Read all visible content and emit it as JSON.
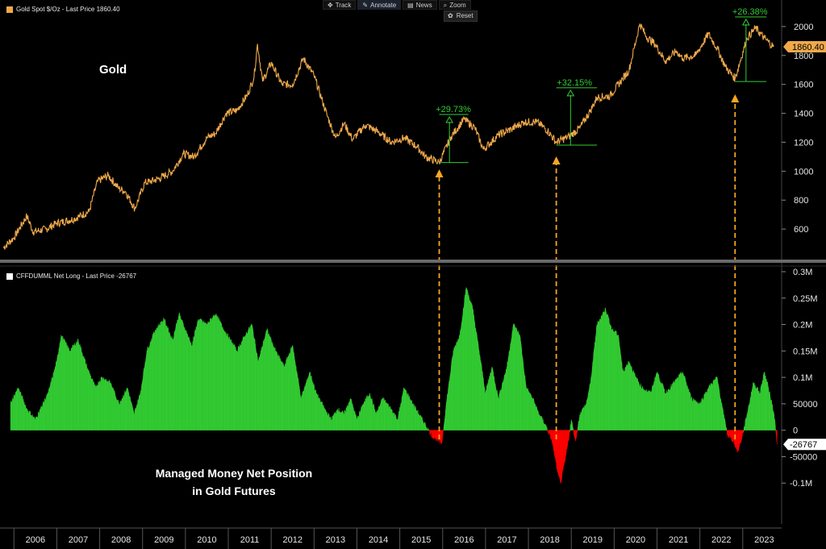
{
  "toolbar": {
    "items": [
      {
        "label": "Track",
        "icon": "crosshair-icon"
      },
      {
        "label": "Annotate",
        "icon": "pencil-icon"
      },
      {
        "label": "News",
        "icon": "news-icon"
      },
      {
        "label": "Zoom",
        "icon": "magnifier-icon"
      }
    ],
    "reset_label": "Reset"
  },
  "headings": {
    "gold": "Gold",
    "net_line1": "Managed Money Net Position",
    "net_line2": "in Gold Futures"
  },
  "colors": {
    "gold_line": "#f0a94a",
    "net_positive": "#33cc33",
    "net_negative": "#ff0000",
    "annotation": "#33cc33",
    "arrow": "#f5a623",
    "axis_text": "#e6e6e6",
    "badge_bg": "#f0a94a"
  },
  "chart_data": [
    {
      "type": "line",
      "legend": "Gold Spot $/Oz - Last Price 1860.40",
      "last_value_label": "1860.40",
      "ylim": [
        400,
        2150
      ],
      "yticks": [
        "600",
        "800",
        "1000",
        "1200",
        "1400",
        "1600",
        "1800",
        "2000"
      ],
      "x": [
        2005.75,
        2006.0,
        2006.3,
        2006.45,
        2006.75,
        2007.0,
        2007.4,
        2007.75,
        2007.95,
        2008.2,
        2008.45,
        2008.6,
        2008.82,
        2009.05,
        2009.2,
        2009.4,
        2009.7,
        2009.95,
        2010.2,
        2010.5,
        2010.7,
        2010.95,
        2011.2,
        2011.45,
        2011.6,
        2011.68,
        2011.8,
        2012.0,
        2012.25,
        2012.5,
        2012.75,
        2013.0,
        2013.3,
        2013.5,
        2013.7,
        2013.9,
        2014.2,
        2014.5,
        2014.8,
        2015.1,
        2015.4,
        2015.6,
        2015.92,
        2016.2,
        2016.5,
        2016.75,
        2016.95,
        2017.3,
        2017.6,
        2017.9,
        2018.2,
        2018.45,
        2018.65,
        2018.95,
        2019.2,
        2019.45,
        2019.6,
        2019.9,
        2020.2,
        2020.35,
        2020.6,
        2020.75,
        2020.95,
        2021.2,
        2021.45,
        2021.6,
        2021.9,
        2022.2,
        2022.4,
        2022.6,
        2022.82,
        2023.1,
        2023.3,
        2023.5,
        2023.72
      ],
      "y": [
        470,
        540,
        690,
        580,
        600,
        640,
        670,
        720,
        930,
        970,
        880,
        860,
        740,
        920,
        930,
        950,
        1000,
        1120,
        1100,
        1230,
        1260,
        1400,
        1420,
        1530,
        1650,
        1880,
        1620,
        1750,
        1600,
        1600,
        1780,
        1660,
        1390,
        1230,
        1330,
        1220,
        1320,
        1270,
        1200,
        1230,
        1170,
        1100,
        1060,
        1240,
        1360,
        1300,
        1150,
        1250,
        1290,
        1340,
        1340,
        1280,
        1200,
        1240,
        1300,
        1420,
        1510,
        1520,
        1640,
        1700,
        2020,
        1930,
        1880,
        1760,
        1830,
        1780,
        1800,
        1950,
        1850,
        1720,
        1640,
        1920,
        1990,
        1920,
        1860
      ],
      "annotations": [
        {
          "label": "+29.73%",
          "x_start": 2015.92,
          "x_end": 2016.6,
          "y_low": 1060,
          "y_high": 1375
        },
        {
          "label": "+32.15%",
          "x_start": 2018.65,
          "x_end": 2019.6,
          "y_low": 1180,
          "y_high": 1560
        },
        {
          "label": "+26.38%",
          "x_start": 2022.82,
          "x_end": 2023.55,
          "y_low": 1620,
          "y_high": 2050
        }
      ]
    },
    {
      "type": "area",
      "legend": "CFFDUMML Net Long - Last Price -26767",
      "last_value_label": "-26767",
      "ylim": [
        -150000,
        300000
      ],
      "yticks": [
        "-0.1M",
        "-50000",
        "0",
        "50000",
        "0.1M",
        "0.15M",
        "0.2M",
        "0.25M",
        "0.3M"
      ],
      "x": [
        2005.92,
        2006.1,
        2006.3,
        2006.5,
        2006.62,
        2006.8,
        2007.0,
        2007.1,
        2007.3,
        2007.5,
        2007.7,
        2007.9,
        2008.05,
        2008.25,
        2008.45,
        2008.65,
        2008.8,
        2008.95,
        2009.1,
        2009.3,
        2009.5,
        2009.7,
        2009.85,
        2010.0,
        2010.15,
        2010.3,
        2010.5,
        2010.7,
        2010.9,
        2011.05,
        2011.2,
        2011.4,
        2011.55,
        2011.7,
        2011.9,
        2012.1,
        2012.3,
        2012.5,
        2012.7,
        2012.9,
        2013.05,
        2013.25,
        2013.4,
        2013.55,
        2013.7,
        2013.85,
        2014.0,
        2014.15,
        2014.3,
        2014.45,
        2014.6,
        2014.8,
        2014.95,
        2015.1,
        2015.3,
        2015.45,
        2015.6,
        2015.75,
        2015.9,
        2015.98,
        2016.1,
        2016.25,
        2016.4,
        2016.55,
        2016.7,
        2016.85,
        2017.0,
        2017.15,
        2017.3,
        2017.5,
        2017.65,
        2017.8,
        2017.95,
        2018.1,
        2018.25,
        2018.4,
        2018.55,
        2018.62,
        2018.68,
        2018.75,
        2018.85,
        2018.95,
        2019.0,
        2019.1,
        2019.2,
        2019.35,
        2019.45,
        2019.6,
        2019.8,
        2019.95,
        2020.1,
        2020.2,
        2020.35,
        2020.5,
        2020.65,
        2020.85,
        2021.0,
        2021.2,
        2021.4,
        2021.6,
        2021.8,
        2022.0,
        2022.2,
        2022.4,
        2022.55,
        2022.65,
        2022.78,
        2022.88,
        2022.98,
        2023.1,
        2023.25,
        2023.4,
        2023.5,
        2023.6,
        2023.68,
        2023.75,
        2023.8
      ],
      "y": [
        50000,
        80000,
        40000,
        20000,
        40000,
        70000,
        130000,
        180000,
        150000,
        170000,
        120000,
        80000,
        100000,
        90000,
        50000,
        80000,
        30000,
        70000,
        150000,
        190000,
        210000,
        170000,
        220000,
        190000,
        160000,
        210000,
        200000,
        220000,
        190000,
        170000,
        150000,
        180000,
        200000,
        130000,
        190000,
        150000,
        120000,
        160000,
        60000,
        110000,
        70000,
        40000,
        20000,
        40000,
        30000,
        60000,
        20000,
        50000,
        70000,
        30000,
        60000,
        40000,
        20000,
        80000,
        50000,
        30000,
        10000,
        -10000,
        -20000,
        -25000,
        60000,
        150000,
        180000,
        270000,
        230000,
        150000,
        70000,
        120000,
        60000,
        120000,
        200000,
        180000,
        80000,
        60000,
        30000,
        10000,
        -20000,
        -50000,
        -80000,
        -100000,
        -60000,
        -10000,
        20000,
        -20000,
        30000,
        50000,
        90000,
        200000,
        230000,
        190000,
        180000,
        110000,
        130000,
        100000,
        80000,
        70000,
        110000,
        70000,
        90000,
        110000,
        60000,
        50000,
        80000,
        100000,
        30000,
        -10000,
        -20000,
        -40000,
        -15000,
        30000,
        90000,
        70000,
        110000,
        80000,
        50000,
        20000,
        -26767
      ]
    }
  ],
  "x_axis": {
    "labels": [
      "2006",
      "2007",
      "2008",
      "2009",
      "2010",
      "2011",
      "2012",
      "2013",
      "2014",
      "2015",
      "2016",
      "2017",
      "2018",
      "2019",
      "2020",
      "2021",
      "2022",
      "2023"
    ],
    "xlim": [
      2005.75,
      2023.85
    ]
  },
  "arrows_x": [
    2015.92,
    2018.65,
    2022.82
  ]
}
